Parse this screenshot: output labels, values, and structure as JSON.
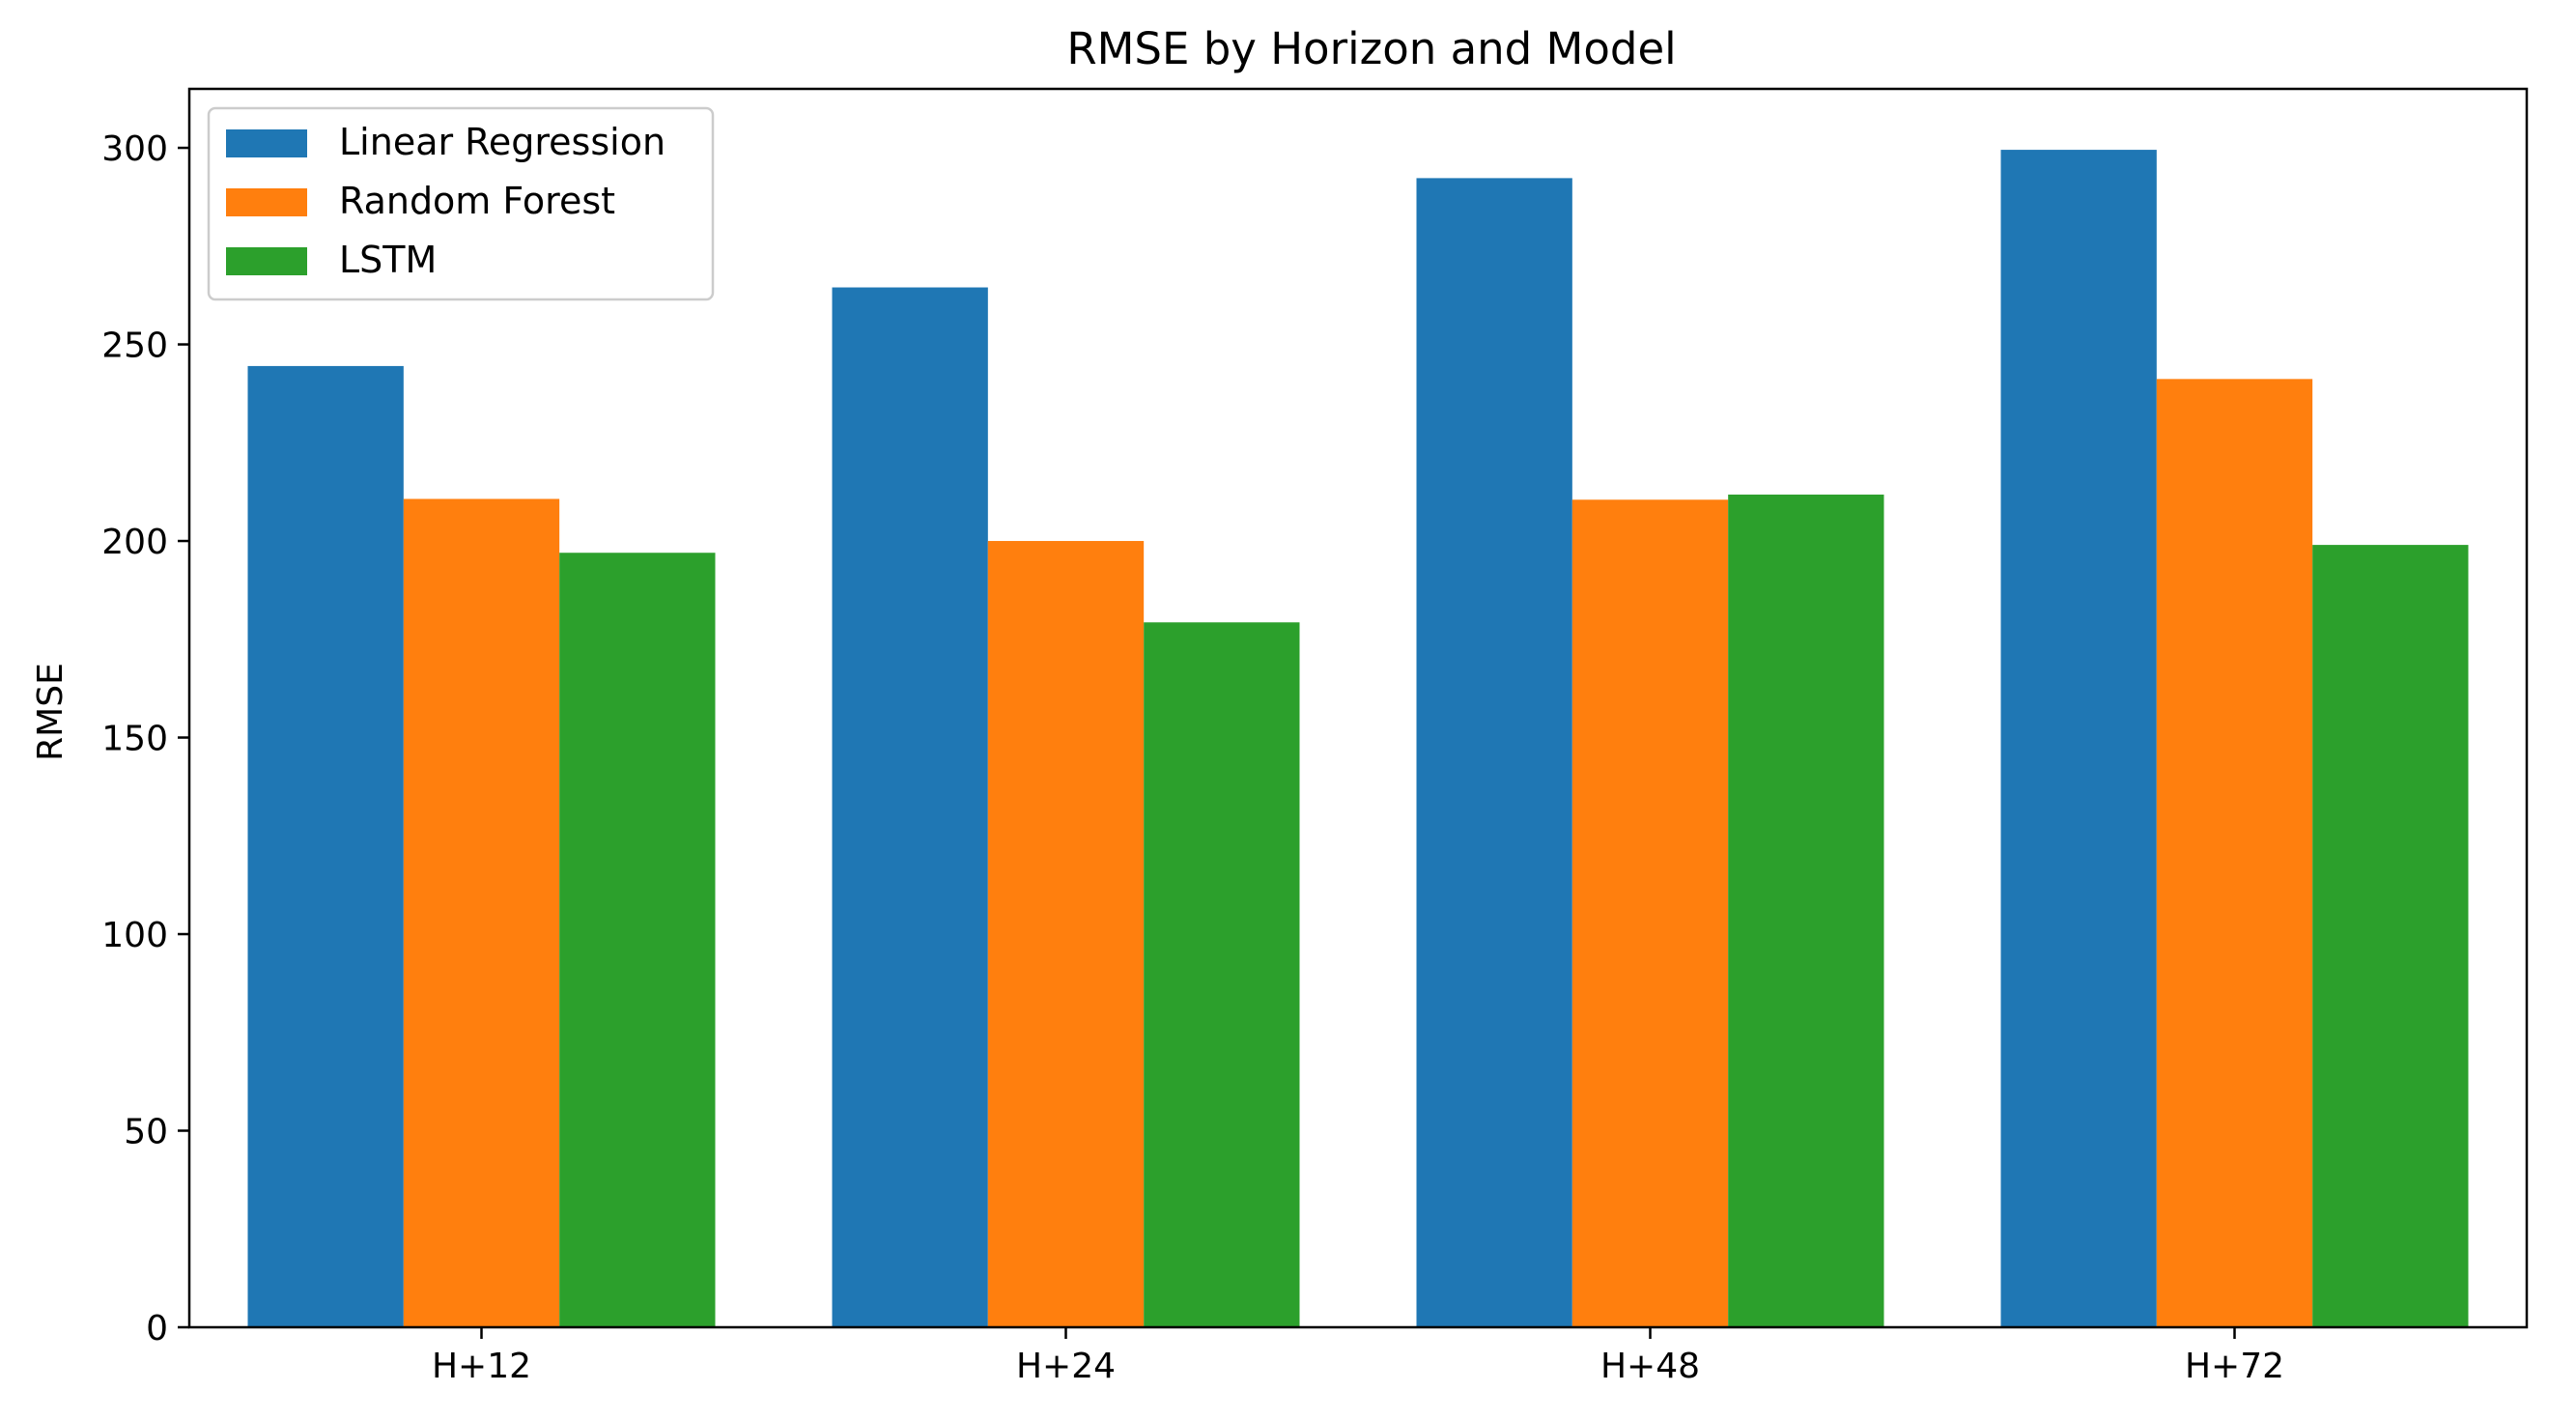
{
  "chart_data": {
    "type": "bar",
    "title": "RMSE by Horizon and Model",
    "xlabel": "",
    "ylabel": "RMSE",
    "categories": [
      "H+12",
      "H+24",
      "H+48",
      "H+72"
    ],
    "series": [
      {
        "name": "Linear Regression",
        "color": "#1f77b4",
        "values": [
          244.5,
          264.5,
          292.3,
          299.5
        ]
      },
      {
        "name": "Random Forest",
        "color": "#ff7f0e",
        "values": [
          210.7,
          200.0,
          210.5,
          241.2
        ]
      },
      {
        "name": "LSTM",
        "color": "#2ca02c",
        "values": [
          197.0,
          179.3,
          211.8,
          199.0
        ]
      }
    ],
    "ylim": [
      0,
      315
    ],
    "yticks": [
      "0",
      "50",
      "100",
      "150",
      "200",
      "250",
      "300"
    ],
    "grid": false,
    "legend_position": "top-left"
  }
}
